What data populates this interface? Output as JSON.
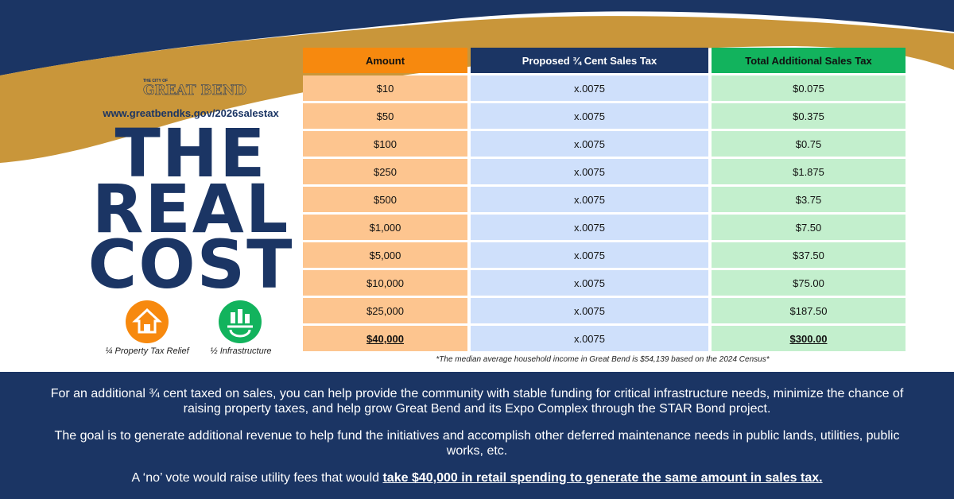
{
  "logo": {
    "small": "THE CITY OF",
    "name": "GREAT BEND"
  },
  "url": "www.greatbendks.gov/2026salestax",
  "headline": [
    "THE",
    "REAL",
    "COST"
  ],
  "icons": [
    {
      "label": "¼ Property Tax Relief"
    },
    {
      "label": "½ Infrastructure"
    }
  ],
  "table": {
    "headers": [
      "Amount",
      "Proposed ¾ Cent Sales Tax",
      "Total Additional Sales Tax"
    ],
    "rows": [
      [
        "$10",
        "x.0075",
        "$0.075"
      ],
      [
        "$50",
        "x.0075",
        "$0.375"
      ],
      [
        "$100",
        "x.0075",
        "$0.75"
      ],
      [
        "$250",
        "x.0075",
        "$1.875"
      ],
      [
        "$500",
        "x.0075",
        "$3.75"
      ],
      [
        "$1,000",
        "x.0075",
        "$7.50"
      ],
      [
        "$5,000",
        "x.0075",
        "$37.50"
      ],
      [
        "$10,000",
        "x.0075",
        "$75.00"
      ],
      [
        "$25,000",
        "x.0075",
        "$187.50"
      ],
      [
        "$40,000",
        "x.0075",
        "$300.00"
      ]
    ]
  },
  "footnote": "*The median average household income in Great Bend is $54,139 based on the 2024 Census*",
  "paragraphs": [
    "For an additional ¾ cent taxed on sales, you can help provide the community with stable funding for critical infrastructure needs, minimize the chance of raising property taxes, and help grow Great Bend and its Expo Complex through the STAR Bond project.",
    "The goal is to generate additional revenue to help fund the initiatives and accomplish other deferred maintenance needs in public lands, utilities, public works, etc."
  ],
  "closing": {
    "text": "A ‘no’ vote would raise utility fees that would ",
    "emphasis": "take $40,000 in retail spending to generate the same amount in sales tax."
  }
}
